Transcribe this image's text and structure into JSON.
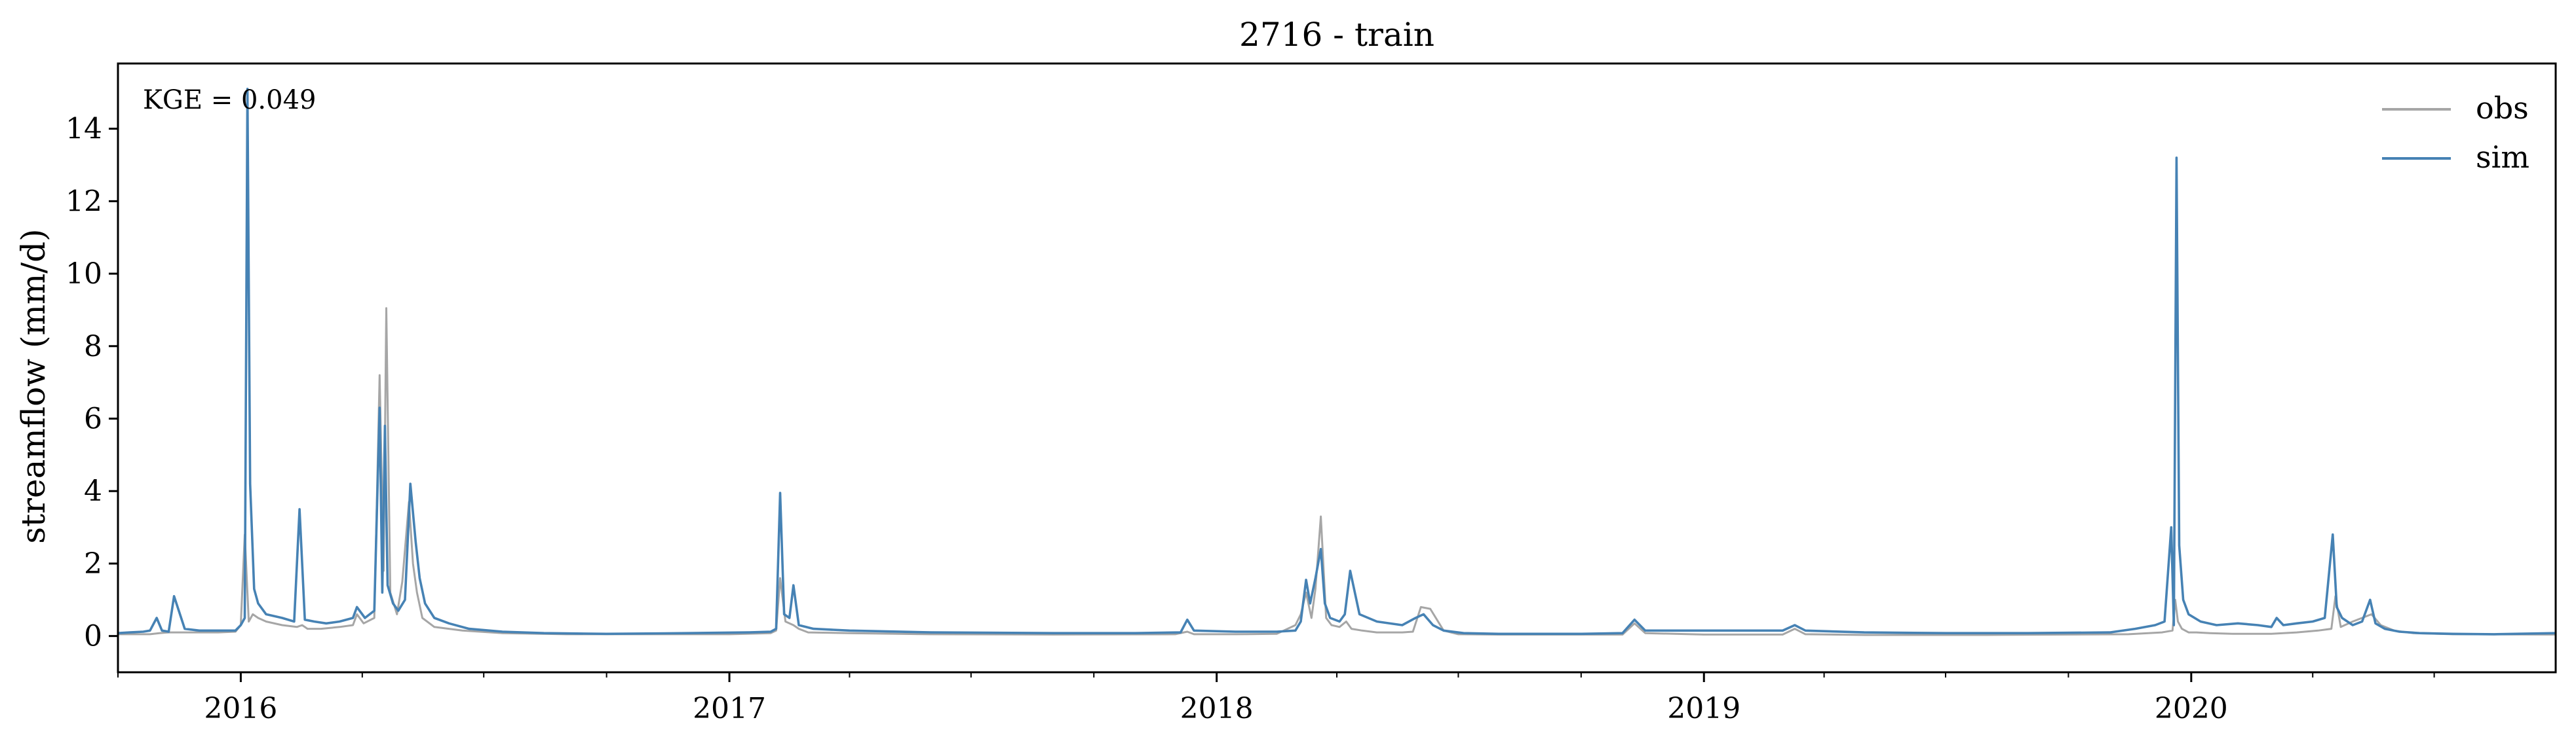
{
  "chart_data": {
    "type": "line",
    "title": "2716 - train",
    "xlabel": "",
    "ylabel": "streamflow (mm/d)",
    "xlim": [
      "2015-10-01",
      "2020-09-30"
    ],
    "ylim": [
      -1,
      15.8
    ],
    "x_ticks": [
      "2016",
      "2017",
      "2018",
      "2019",
      "2020"
    ],
    "y_ticks": [
      0,
      2,
      4,
      6,
      8,
      10,
      12,
      14
    ],
    "grid": false,
    "legend_position": "top-right",
    "annotation": "KGE = 0.049",
    "series": [
      {
        "name": "obs",
        "color": "#a6a6a6",
        "x": [
          "2015-10-01",
          "2015-10-15",
          "2015-10-25",
          "2015-11-01",
          "2015-11-08",
          "2015-11-15",
          "2015-12-01",
          "2015-12-15",
          "2015-12-28",
          "2016-01-01",
          "2016-01-04",
          "2016-01-07",
          "2016-01-10",
          "2016-01-14",
          "2016-01-20",
          "2016-02-01",
          "2016-02-12",
          "2016-02-16",
          "2016-02-20",
          "2016-03-01",
          "2016-03-15",
          "2016-03-25",
          "2016-03-28",
          "2016-04-02",
          "2016-04-10",
          "2016-04-14",
          "2016-04-17",
          "2016-04-19",
          "2016-04-22",
          "2016-04-27",
          "2016-05-01",
          "2016-05-06",
          "2016-05-09",
          "2016-05-12",
          "2016-05-16",
          "2016-05-25",
          "2016-06-15",
          "2016-07-15",
          "2016-09-01",
          "2016-11-01",
          "2017-01-01",
          "2017-02-01",
          "2017-02-05",
          "2017-02-08",
          "2017-02-12",
          "2017-02-18",
          "2017-02-22",
          "2017-03-01",
          "2017-04-01",
          "2017-06-01",
          "2017-09-01",
          "2017-12-01",
          "2017-12-10",
          "2017-12-15",
          "2018-01-15",
          "2018-02-15",
          "2018-03-01",
          "2018-03-05",
          "2018-03-09",
          "2018-03-13",
          "2018-03-16",
          "2018-03-20",
          "2018-03-24",
          "2018-03-28",
          "2018-04-03",
          "2018-04-08",
          "2018-04-12",
          "2018-04-20",
          "2018-05-01",
          "2018-05-20",
          "2018-05-28",
          "2018-06-03",
          "2018-06-10",
          "2018-06-20",
          "2018-07-01",
          "2018-08-01",
          "2018-11-01",
          "2018-11-10",
          "2018-11-18",
          "2019-01-01",
          "2019-03-01",
          "2019-03-10",
          "2019-03-18",
          "2019-05-01",
          "2019-08-01",
          "2019-11-15",
          "2019-12-10",
          "2019-12-18",
          "2019-12-20",
          "2019-12-22",
          "2019-12-25",
          "2019-12-30",
          "2020-01-05",
          "2020-01-15",
          "2020-02-01",
          "2020-03-01",
          "2020-03-20",
          "2020-04-05",
          "2020-04-15",
          "2020-04-18",
          "2020-04-22",
          "2020-05-01",
          "2020-05-15",
          "2020-05-22",
          "2020-06-01",
          "2020-06-15",
          "2020-07-15",
          "2020-09-30"
        ],
        "y": [
          0.05,
          0.05,
          0.05,
          0.08,
          0.1,
          0.1,
          0.1,
          0.1,
          0.12,
          0.3,
          2.8,
          0.4,
          0.6,
          0.5,
          0.4,
          0.3,
          0.25,
          0.3,
          0.2,
          0.2,
          0.25,
          0.3,
          0.6,
          0.35,
          0.5,
          7.2,
          1.8,
          9.05,
          1.2,
          0.6,
          1.5,
          3.7,
          2.0,
          1.2,
          0.5,
          0.25,
          0.15,
          0.08,
          0.05,
          0.05,
          0.05,
          0.08,
          0.15,
          1.6,
          0.4,
          0.3,
          0.2,
          0.1,
          0.08,
          0.05,
          0.04,
          0.05,
          0.12,
          0.05,
          0.05,
          0.06,
          0.3,
          0.6,
          1.2,
          0.5,
          1.3,
          3.3,
          0.5,
          0.3,
          0.25,
          0.4,
          0.2,
          0.15,
          0.1,
          0.1,
          0.12,
          0.8,
          0.75,
          0.15,
          0.05,
          0.04,
          0.04,
          0.35,
          0.08,
          0.04,
          0.04,
          0.2,
          0.05,
          0.03,
          0.03,
          0.05,
          0.1,
          0.15,
          1.0,
          0.4,
          0.2,
          0.1,
          0.1,
          0.08,
          0.06,
          0.06,
          0.1,
          0.15,
          0.2,
          1.1,
          0.25,
          0.4,
          0.6,
          0.3,
          0.15,
          0.08,
          0.05,
          0.04
        ]
      },
      {
        "name": "sim",
        "color": "#4682b4",
        "x": [
          "2015-10-01",
          "2015-10-10",
          "2015-10-20",
          "2015-10-25",
          "2015-10-30",
          "2015-11-03",
          "2015-11-08",
          "2015-11-12",
          "2015-11-20",
          "2015-12-01",
          "2015-12-15",
          "2015-12-28",
          "2016-01-01",
          "2016-01-04",
          "2016-01-06",
          "2016-01-08",
          "2016-01-11",
          "2016-01-14",
          "2016-01-20",
          "2016-02-01",
          "2016-02-10",
          "2016-02-14",
          "2016-02-18",
          "2016-02-25",
          "2016-03-05",
          "2016-03-15",
          "2016-03-25",
          "2016-03-28",
          "2016-04-03",
          "2016-04-10",
          "2016-04-14",
          "2016-04-16",
          "2016-04-18",
          "2016-04-20",
          "2016-04-24",
          "2016-04-28",
          "2016-05-03",
          "2016-05-07",
          "2016-05-11",
          "2016-05-14",
          "2016-05-18",
          "2016-05-25",
          "2016-06-05",
          "2016-06-20",
          "2016-07-15",
          "2016-08-15",
          "2016-10-01",
          "2016-12-01",
          "2017-01-15",
          "2017-02-01",
          "2017-02-05",
          "2017-02-08",
          "2017-02-11",
          "2017-02-15",
          "2017-02-18",
          "2017-02-22",
          "2017-03-05",
          "2017-04-01",
          "2017-06-01",
          "2017-09-01",
          "2017-11-01",
          "2017-12-05",
          "2017-12-10",
          "2017-12-15",
          "2018-01-15",
          "2018-02-15",
          "2018-03-01",
          "2018-03-05",
          "2018-03-09",
          "2018-03-12",
          "2018-03-16",
          "2018-03-20",
          "2018-03-23",
          "2018-03-27",
          "2018-04-03",
          "2018-04-07",
          "2018-04-11",
          "2018-04-18",
          "2018-05-01",
          "2018-05-20",
          "2018-05-30",
          "2018-06-05",
          "2018-06-12",
          "2018-06-20",
          "2018-07-05",
          "2018-08-01",
          "2018-10-01",
          "2018-11-01",
          "2018-11-10",
          "2018-11-18",
          "2019-01-01",
          "2019-03-01",
          "2019-03-10",
          "2019-03-18",
          "2019-05-01",
          "2019-07-01",
          "2019-09-01",
          "2019-11-01",
          "2019-11-20",
          "2019-12-05",
          "2019-12-12",
          "2019-12-17",
          "2019-12-19",
          "2019-12-21",
          "2019-12-23",
          "2019-12-26",
          "2019-12-30",
          "2020-01-08",
          "2020-01-20",
          "2020-02-05",
          "2020-02-20",
          "2020-03-01",
          "2020-03-05",
          "2020-03-10",
          "2020-03-20",
          "2020-04-01",
          "2020-04-10",
          "2020-04-16",
          "2020-04-19",
          "2020-04-23",
          "2020-05-01",
          "2020-05-08",
          "2020-05-14",
          "2020-05-18",
          "2020-05-25",
          "2020-06-05",
          "2020-06-20",
          "2020-07-15",
          "2020-08-15",
          "2020-09-30"
        ],
        "y": [
          0.08,
          0.1,
          0.12,
          0.15,
          0.5,
          0.15,
          0.12,
          1.1,
          0.2,
          0.15,
          0.15,
          0.15,
          0.3,
          0.5,
          15.1,
          4.2,
          1.3,
          0.9,
          0.6,
          0.5,
          0.4,
          3.5,
          0.45,
          0.4,
          0.35,
          0.4,
          0.5,
          0.8,
          0.5,
          0.7,
          6.3,
          1.2,
          5.8,
          1.4,
          0.9,
          0.7,
          1.0,
          4.2,
          2.6,
          1.6,
          0.9,
          0.5,
          0.35,
          0.2,
          0.12,
          0.08,
          0.06,
          0.08,
          0.1,
          0.12,
          0.2,
          3.95,
          0.6,
          0.5,
          1.4,
          0.3,
          0.2,
          0.15,
          0.1,
          0.08,
          0.08,
          0.1,
          0.45,
          0.15,
          0.12,
          0.12,
          0.15,
          0.4,
          1.55,
          0.9,
          1.6,
          2.4,
          0.9,
          0.5,
          0.4,
          0.6,
          1.8,
          0.6,
          0.4,
          0.3,
          0.5,
          0.6,
          0.3,
          0.15,
          0.08,
          0.06,
          0.06,
          0.08,
          0.45,
          0.15,
          0.15,
          0.15,
          0.3,
          0.15,
          0.1,
          0.08,
          0.08,
          0.1,
          0.2,
          0.3,
          0.4,
          3.0,
          0.3,
          13.2,
          2.5,
          1.0,
          0.6,
          0.4,
          0.3,
          0.35,
          0.3,
          0.25,
          0.5,
          0.3,
          0.35,
          0.4,
          0.5,
          2.8,
          0.8,
          0.5,
          0.3,
          0.4,
          1.0,
          0.35,
          0.2,
          0.12,
          0.08,
          0.06,
          0.05,
          0.08
        ]
      }
    ]
  }
}
